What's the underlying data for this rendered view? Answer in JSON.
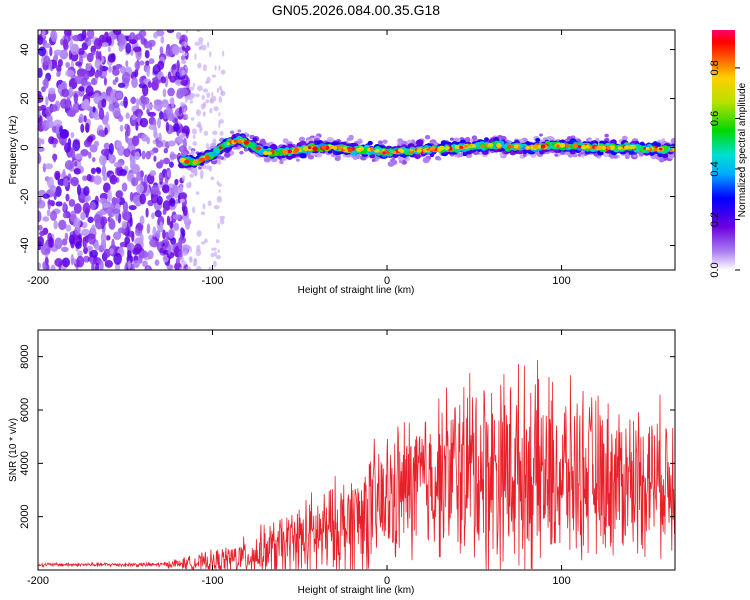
{
  "title": "GN05.2026.084.00.35.G18",
  "colors": {
    "line": "#e8202a",
    "scatter_low": "#7a1ff0",
    "axis": "#000000",
    "background": "#ffffff"
  },
  "chart_data": [
    {
      "type": "heatmap",
      "name": "spectrogram",
      "xlabel": "Height of straight line (km)",
      "ylabel": "Frequency (Hz)",
      "xlim": [
        -200,
        165
      ],
      "ylim": [
        -50,
        48
      ],
      "xticks": [
        -200,
        -100,
        0,
        100
      ],
      "yticks": [
        -40,
        -20,
        0,
        20,
        40
      ],
      "noise_region_x": [
        -200,
        -118
      ],
      "signal_track": {
        "x": [
          -118,
          -110,
          -100,
          -95,
          -90,
          -85,
          -80,
          -75,
          -70,
          -60,
          -50,
          -40,
          -30,
          -20,
          -10,
          0,
          20,
          40,
          60,
          80,
          100,
          120,
          140,
          160
        ],
        "freq": [
          -5,
          -6,
          -3,
          0,
          2,
          3,
          2,
          0,
          -2,
          -2,
          -1,
          0,
          0,
          -1,
          -1,
          -2,
          -1,
          0,
          1,
          0,
          1,
          0,
          0,
          -1
        ]
      },
      "colorbar": {
        "label": "Normalized spectral amplitude",
        "range": [
          0,
          0.95
        ],
        "ticks": [
          "0.0",
          "0.2",
          "0.4",
          "0.6",
          "0.8"
        ],
        "tick_values": [
          0,
          0.2,
          0.4,
          0.6,
          0.8
        ]
      }
    },
    {
      "type": "line",
      "name": "snr",
      "xlabel": "Height of straight line (km)",
      "ylabel": "SNR (10 * v/v)",
      "xlim": [
        -200,
        165
      ],
      "ylim": [
        0,
        9000
      ],
      "xticks": [
        -200,
        -100,
        0,
        100
      ],
      "yticks": [
        2000,
        4000,
        6000,
        8000
      ],
      "envelope": {
        "x": [
          -200,
          -130,
          -115,
          -100,
          -90,
          -80,
          -70,
          -60,
          -50,
          -40,
          -30,
          -20,
          -10,
          0,
          10,
          20,
          30,
          40,
          50,
          60,
          70,
          80,
          90,
          100,
          110,
          120,
          130,
          140,
          150,
          165
        ],
        "base": [
          200,
          200,
          250,
          300,
          400,
          500,
          700,
          900,
          1100,
          1300,
          1500,
          1800,
          2200,
          2600,
          3000,
          3300,
          3600,
          3700,
          3800,
          3700,
          3800,
          3700,
          3600,
          3500,
          3600,
          3500,
          3400,
          3400,
          3500,
          3400
        ],
        "amp": [
          80,
          100,
          300,
          500,
          700,
          900,
          1200,
          1400,
          1800,
          2000,
          2200,
          2500,
          2800,
          3000,
          3200,
          3400,
          3600,
          4000,
          4600,
          4400,
          4600,
          4400,
          4400,
          4000,
          3800,
          3600,
          3400,
          3400,
          3300,
          3300
        ]
      }
    }
  ]
}
